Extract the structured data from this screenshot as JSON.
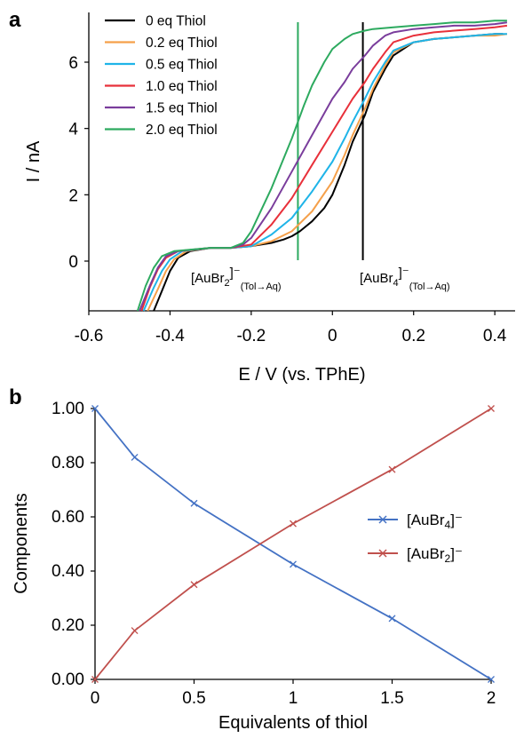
{
  "chart_data": [
    {
      "type": "line",
      "panel_label": "a",
      "xlabel": "E / V (vs. TPhE)",
      "ylabel": "I / nA",
      "xlim": [
        -0.6,
        0.45
      ],
      "ylim": [
        -1.5,
        7.5
      ],
      "x_ticks": [
        "-0.6",
        "-0.4",
        "-0.2",
        "0",
        "0.2",
        "0.4"
      ],
      "y_ticks": [
        "0",
        "2",
        "4",
        "6"
      ],
      "legend_position": "top-left",
      "series": [
        {
          "name": "0 eq Thiol",
          "color": "#000000",
          "x": [
            -0.44,
            -0.42,
            -0.4,
            -0.38,
            -0.35,
            -0.3,
            -0.25,
            -0.2,
            -0.15,
            -0.12,
            -0.1,
            -0.08,
            -0.05,
            -0.02,
            0.0,
            0.03,
            0.05,
            0.08,
            0.1,
            0.13,
            0.15,
            0.2,
            0.25,
            0.3,
            0.35,
            0.4,
            0.42
          ],
          "y": [
            -1.5,
            -0.9,
            -0.3,
            0.1,
            0.3,
            0.4,
            0.4,
            0.45,
            0.55,
            0.65,
            0.75,
            0.9,
            1.2,
            1.6,
            2.0,
            2.9,
            3.6,
            4.4,
            5.1,
            5.8,
            6.2,
            6.6,
            6.7,
            6.75,
            6.8,
            6.85,
            6.85
          ]
        },
        {
          "name": "0.2 eq Thiol",
          "color": "#F5A04A",
          "x": [
            -0.455,
            -0.43,
            -0.41,
            -0.39,
            -0.36,
            -0.3,
            -0.25,
            -0.2,
            -0.15,
            -0.1,
            -0.05,
            0.0,
            0.03,
            0.05,
            0.08,
            0.1,
            0.13,
            0.15,
            0.2,
            0.25,
            0.3,
            0.35,
            0.4,
            0.43
          ],
          "y": [
            -1.5,
            -0.85,
            -0.3,
            0.05,
            0.3,
            0.4,
            0.4,
            0.45,
            0.6,
            0.9,
            1.5,
            2.4,
            3.2,
            3.8,
            4.6,
            5.2,
            5.9,
            6.3,
            6.6,
            6.7,
            6.75,
            6.8,
            6.8,
            6.85
          ]
        },
        {
          "name": "0.5 eq Thiol",
          "color": "#1FB4E8",
          "x": [
            -0.465,
            -0.44,
            -0.42,
            -0.4,
            -0.37,
            -0.3,
            -0.25,
            -0.2,
            -0.15,
            -0.1,
            -0.05,
            0.0,
            0.03,
            0.05,
            0.08,
            0.1,
            0.13,
            0.15,
            0.2,
            0.25,
            0.3,
            0.35,
            0.4,
            0.43
          ],
          "y": [
            -1.5,
            -0.8,
            -0.3,
            0.05,
            0.3,
            0.4,
            0.4,
            0.45,
            0.8,
            1.3,
            2.1,
            3.0,
            3.7,
            4.2,
            4.9,
            5.4,
            6.0,
            6.35,
            6.6,
            6.7,
            6.75,
            6.8,
            6.85,
            6.85
          ]
        },
        {
          "name": "1.0 eq Thiol",
          "color": "#E8303A",
          "x": [
            -0.47,
            -0.45,
            -0.43,
            -0.41,
            -0.38,
            -0.3,
            -0.25,
            -0.2,
            -0.15,
            -0.1,
            -0.05,
            0.0,
            0.03,
            0.05,
            0.08,
            0.1,
            0.13,
            0.15,
            0.2,
            0.25,
            0.3,
            0.35,
            0.4,
            0.43
          ],
          "y": [
            -1.5,
            -0.8,
            -0.25,
            0.1,
            0.3,
            0.4,
            0.4,
            0.5,
            1.1,
            1.9,
            2.9,
            3.9,
            4.5,
            4.9,
            5.4,
            5.8,
            6.3,
            6.6,
            6.8,
            6.9,
            6.95,
            7.0,
            7.05,
            7.1
          ]
        },
        {
          "name": "1.5 eq Thiol",
          "color": "#7A3D9C",
          "x": [
            -0.475,
            -0.45,
            -0.43,
            -0.41,
            -0.38,
            -0.3,
            -0.25,
            -0.22,
            -0.2,
            -0.15,
            -0.1,
            -0.05,
            0.0,
            0.03,
            0.05,
            0.08,
            0.1,
            0.13,
            0.15,
            0.2,
            0.25,
            0.3,
            0.35,
            0.4,
            0.43
          ],
          "y": [
            -1.5,
            -0.75,
            -0.2,
            0.15,
            0.3,
            0.4,
            0.4,
            0.5,
            0.7,
            1.6,
            2.7,
            3.8,
            4.9,
            5.4,
            5.8,
            6.2,
            6.5,
            6.8,
            6.9,
            7.0,
            7.05,
            7.1,
            7.1,
            7.15,
            7.2
          ]
        },
        {
          "name": "2.0 eq Thiol",
          "color": "#2DAA5F",
          "x": [
            -0.48,
            -0.46,
            -0.44,
            -0.42,
            -0.39,
            -0.3,
            -0.25,
            -0.22,
            -0.2,
            -0.15,
            -0.1,
            -0.07,
            -0.05,
            -0.02,
            0.0,
            0.03,
            0.05,
            0.08,
            0.1,
            0.15,
            0.2,
            0.25,
            0.3,
            0.35,
            0.4,
            0.43
          ],
          "y": [
            -1.5,
            -0.75,
            -0.2,
            0.15,
            0.3,
            0.4,
            0.4,
            0.55,
            0.9,
            2.2,
            3.7,
            4.7,
            5.3,
            6.0,
            6.4,
            6.7,
            6.85,
            6.95,
            7.0,
            7.05,
            7.1,
            7.15,
            7.2,
            7.2,
            7.25,
            7.25
          ]
        }
      ],
      "reference_lines": [
        {
          "x": -0.085,
          "color": "#2DAA5F"
        },
        {
          "x": 0.075,
          "color": "#000000"
        }
      ],
      "annotations": [
        {
          "main": "[AuBr",
          "sub": "2",
          "sup": "]⁻",
          "subtail": "(Tol→Aq)"
        },
        {
          "main": "[AuBr",
          "sub": "4",
          "sup": "]⁻",
          "subtail": "(Tol→Aq)"
        }
      ]
    },
    {
      "type": "line",
      "panel_label": "b",
      "xlabel": "Equivalents of thiol",
      "ylabel": "Components",
      "xlim": [
        0,
        2
      ],
      "ylim": [
        0,
        1
      ],
      "x_ticks": [
        "0",
        "0.5",
        "1",
        "1.5",
        "2"
      ],
      "y_ticks": [
        "0.00",
        "0.20",
        "0.40",
        "0.60",
        "0.80",
        "1.00"
      ],
      "legend_position": "right",
      "series": [
        {
          "name_main": "[AuBr",
          "name_sub": "4",
          "name_sup": "]⁻",
          "color": "#4472C4",
          "x": [
            0,
            0.2,
            0.5,
            1.0,
            1.5,
            2.0
          ],
          "y": [
            1.0,
            0.82,
            0.65,
            0.425,
            0.225,
            0.0
          ]
        },
        {
          "name_main": "[AuBr",
          "name_sub": "2",
          "name_sup": "]⁻",
          "color": "#C0504D",
          "x": [
            0,
            0.2,
            0.5,
            1.0,
            1.5,
            2.0
          ],
          "y": [
            0.0,
            0.18,
            0.35,
            0.575,
            0.775,
            1.0
          ]
        }
      ]
    }
  ]
}
